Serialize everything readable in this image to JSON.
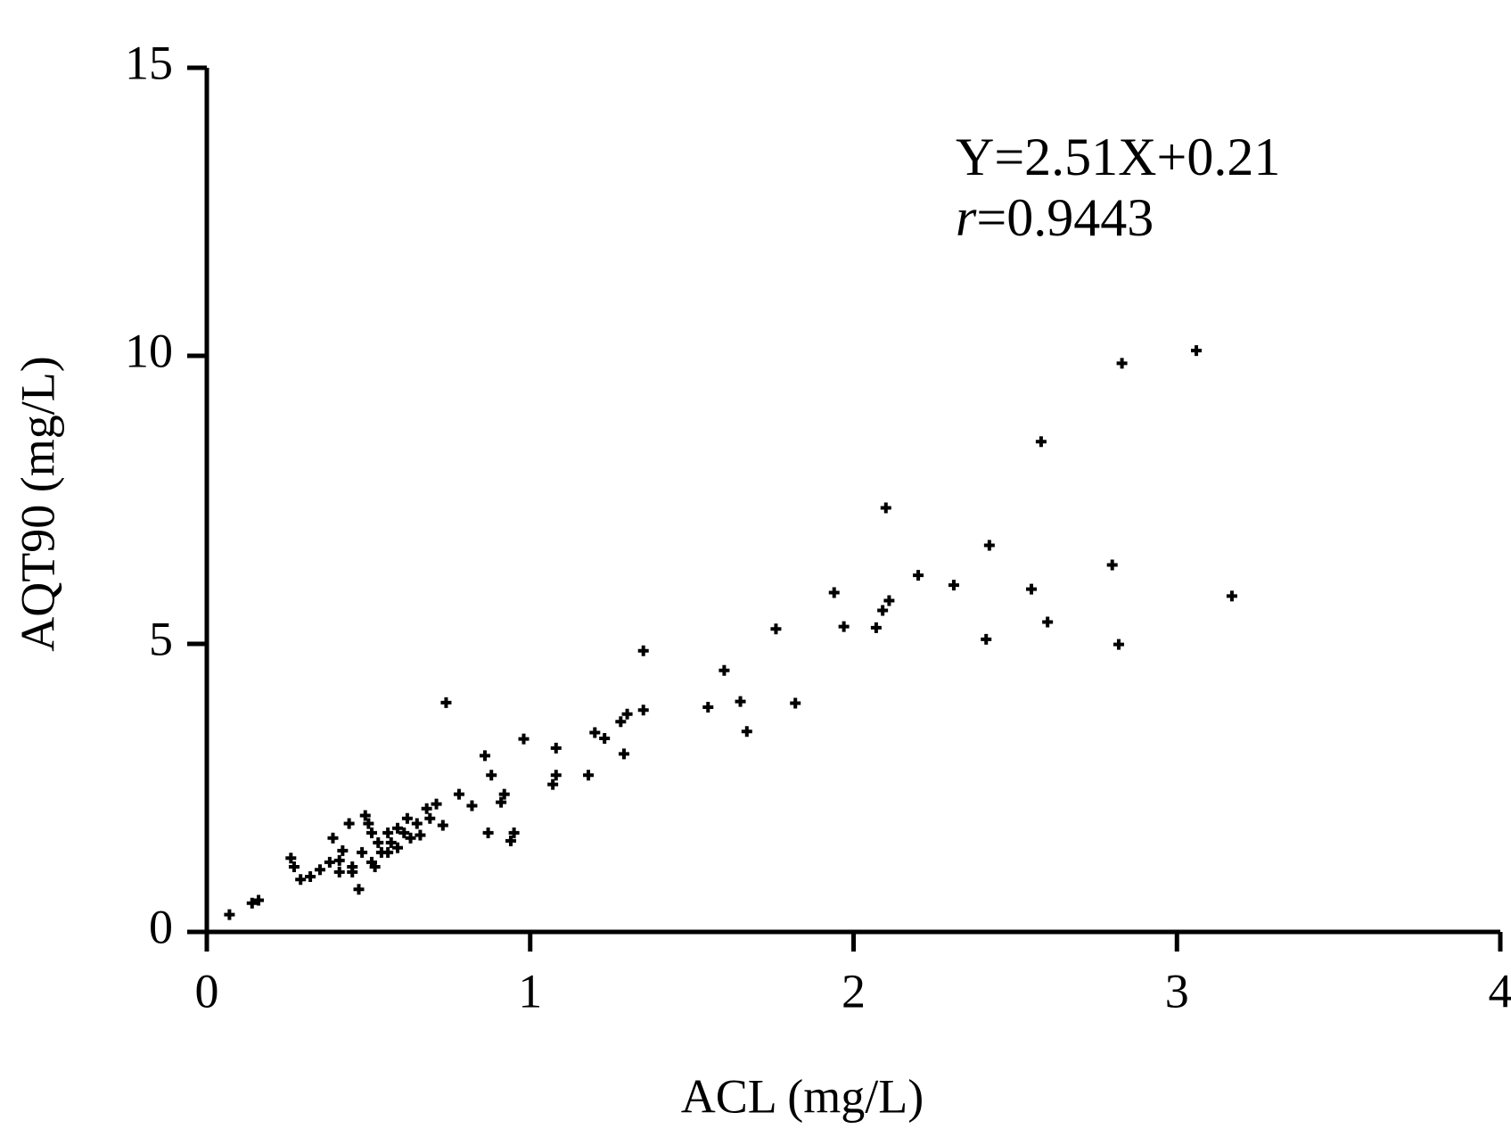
{
  "chart_data": {
    "type": "scatter",
    "x_label": "ACL (mg/L)",
    "y_label": "AQT90 (mg/L)",
    "annotations": [
      "Y=2.51X+0.21",
      "r=0.9443"
    ],
    "xlim": [
      0,
      4
    ],
    "ylim": [
      0,
      15
    ],
    "xticks": [
      0,
      1,
      2,
      3,
      4
    ],
    "yticks": [
      0,
      5,
      10,
      15
    ],
    "color": "#000000",
    "x": [
      0.07,
      0.14,
      0.16,
      0.26,
      0.27,
      0.29,
      0.32,
      0.35,
      0.38,
      0.39,
      0.41,
      0.42,
      0.44,
      0.45,
      0.47,
      0.48,
      0.49,
      0.51,
      0.51,
      0.53,
      0.54,
      0.56,
      0.57,
      0.59,
      0.59,
      0.61,
      0.62,
      0.63,
      0.65,
      0.66,
      0.68,
      0.69,
      0.71,
      0.73,
      0.45,
      0.52,
      0.56,
      0.41,
      0.5,
      0.78,
      0.82,
      0.91,
      0.74,
      0.86,
      0.88,
      0.87,
      0.95,
      0.94,
      0.98,
      0.92,
      1.08,
      1.08,
      1.07,
      1.18,
      1.2,
      1.23,
      1.29,
      1.28,
      1.3,
      1.35,
      1.35,
      1.55,
      1.6,
      1.65,
      1.67,
      1.76,
      1.82,
      1.94,
      1.97,
      2.07,
      2.09,
      2.11,
      2.1,
      2.2,
      2.31,
      2.41,
      2.42,
      2.55,
      2.6,
      2.58,
      2.8,
      2.82,
      2.83,
      3.06,
      3.17
    ],
    "y": [
      0.3,
      0.5,
      0.55,
      1.28,
      1.13,
      0.91,
      0.96,
      1.08,
      1.21,
      1.63,
      1.04,
      1.41,
      1.88,
      1.13,
      0.74,
      1.38,
      2.02,
      1.72,
      1.21,
      1.55,
      1.38,
      1.72,
      1.55,
      1.8,
      1.46,
      1.72,
      1.97,
      1.63,
      1.88,
      1.68,
      2.14,
      1.97,
      2.22,
      1.85,
      1.04,
      1.13,
      1.38,
      1.24,
      1.88,
      2.39,
      2.19,
      2.25,
      3.98,
      3.06,
      2.72,
      1.72,
      1.72,
      1.58,
      3.35,
      2.39,
      3.19,
      2.72,
      2.56,
      2.72,
      3.46,
      3.36,
      3.09,
      3.65,
      3.78,
      4.88,
      3.85,
      3.9,
      4.54,
      4.0,
      3.48,
      5.26,
      3.97,
      5.89,
      5.3,
      5.28,
      5.58,
      5.75,
      7.36,
      6.19,
      6.02,
      5.08,
      6.71,
      5.95,
      5.38,
      8.51,
      6.37,
      4.99,
      9.87,
      10.09,
      5.83
    ]
  }
}
